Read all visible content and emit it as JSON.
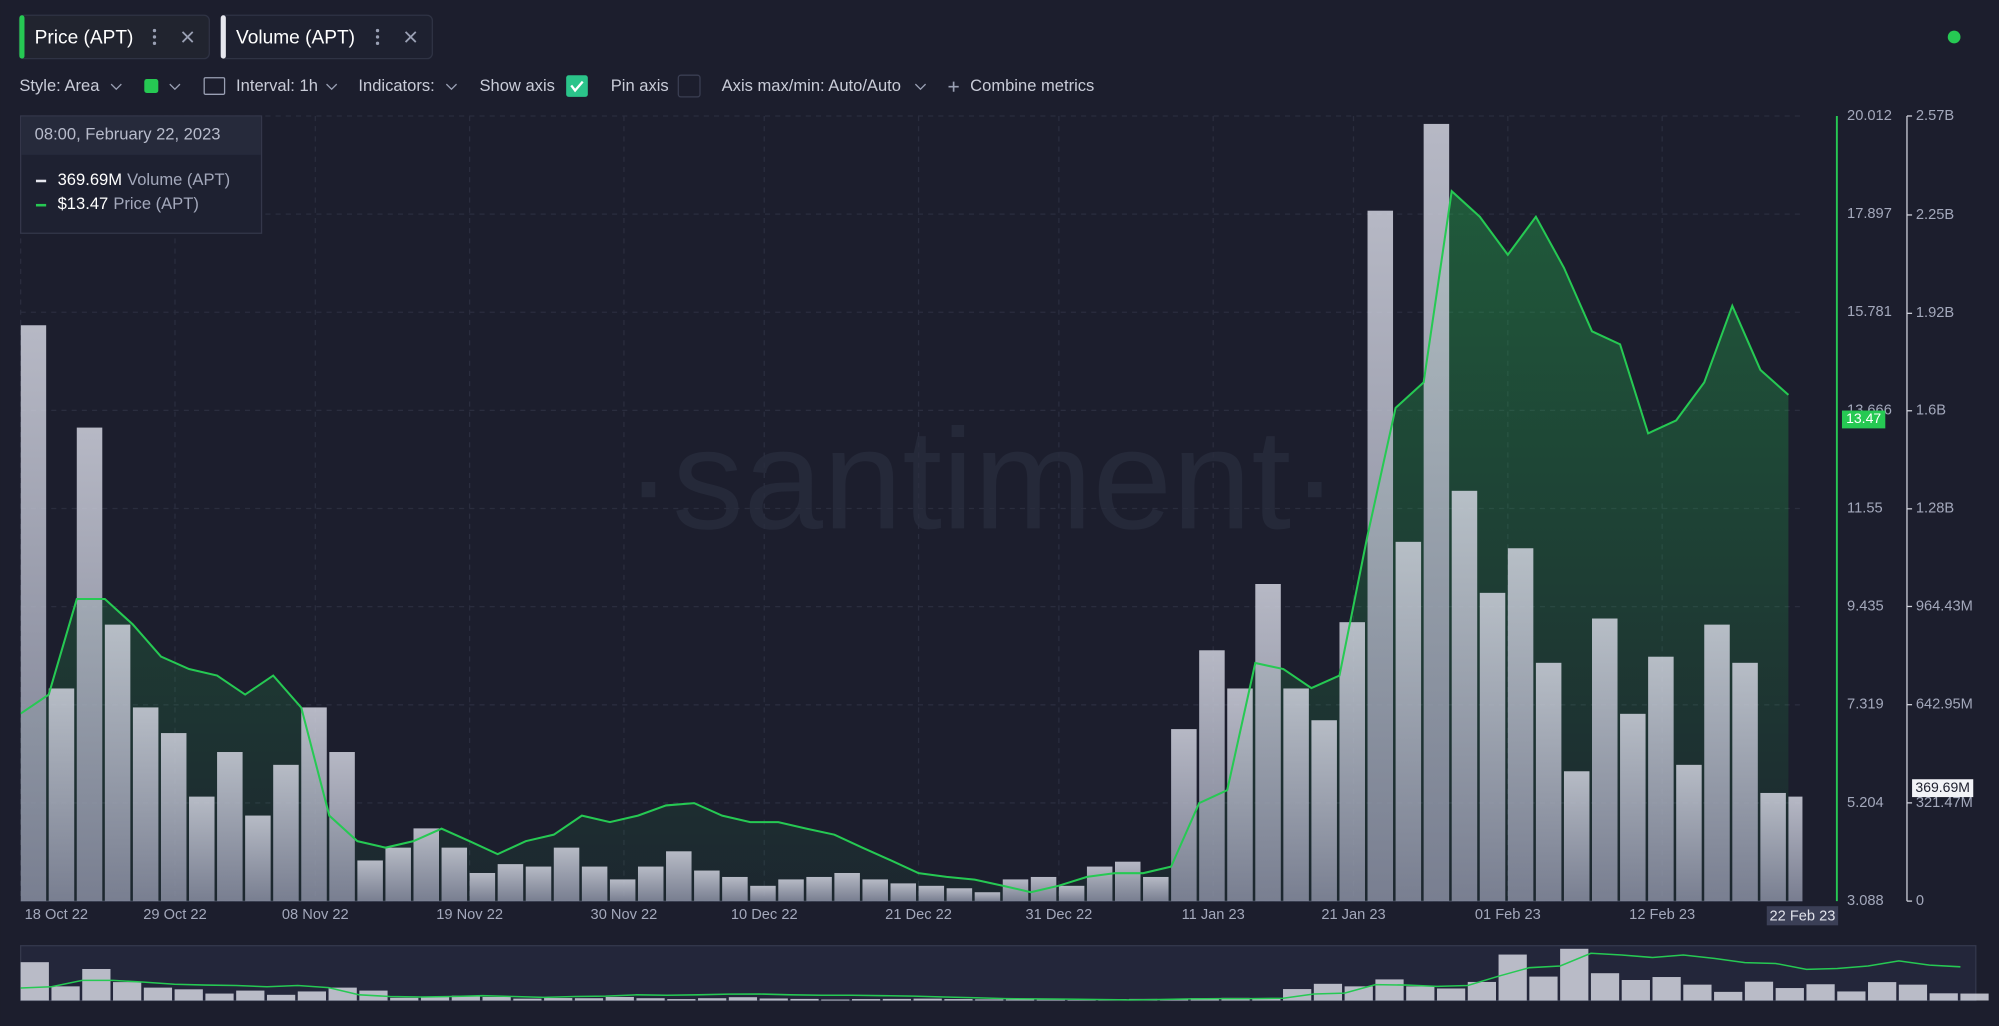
{
  "toolbar": {
    "style": "Style: Area",
    "interval": "Interval: 1h",
    "indicators": "Indicators:",
    "show_axis": "Show axis",
    "pin_axis": "Pin axis",
    "axis_minmax": "Axis max/min: Auto/Auto",
    "combine": "Combine metrics"
  },
  "watermark": "·santiment·",
  "chart_data": {
    "type": "combo",
    "x": [
      "2022-10-18",
      "2022-10-20",
      "2022-10-22",
      "2022-10-24",
      "2022-10-26",
      "2022-10-28",
      "2022-10-30",
      "2022-11-01",
      "2022-11-03",
      "2022-11-05",
      "2022-11-07",
      "2022-11-09",
      "2022-11-11",
      "2022-11-13",
      "2022-11-15",
      "2022-11-17",
      "2022-11-19",
      "2022-11-21",
      "2022-11-23",
      "2022-11-25",
      "2022-11-27",
      "2022-11-29",
      "2022-12-01",
      "2022-12-03",
      "2022-12-05",
      "2022-12-07",
      "2022-12-09",
      "2022-12-11",
      "2022-12-13",
      "2022-12-15",
      "2022-12-17",
      "2022-12-19",
      "2022-12-21",
      "2022-12-23",
      "2022-12-25",
      "2022-12-27",
      "2022-12-29",
      "2022-12-31",
      "2023-01-02",
      "2023-01-04",
      "2023-01-06",
      "2023-01-08",
      "2023-01-10",
      "2023-01-12",
      "2023-01-14",
      "2023-01-16",
      "2023-01-18",
      "2023-01-20",
      "2023-01-22",
      "2023-01-24",
      "2023-01-26",
      "2023-01-28",
      "2023-01-30",
      "2023-02-01",
      "2023-02-03",
      "2023-02-05",
      "2023-02-07",
      "2023-02-09",
      "2023-02-11",
      "2023-02-13",
      "2023-02-15",
      "2023-02-17",
      "2023-02-19",
      "2023-02-21"
    ],
    "series": [
      {
        "name": "Price (APT)",
        "type": "area",
        "color": "#26c953",
        "values": [
          7.13,
          7.54,
          9.6,
          9.6,
          9.05,
          8.36,
          8.09,
          7.95,
          7.54,
          7.95,
          7.26,
          4.93,
          4.38,
          4.24,
          4.38,
          4.65,
          4.38,
          4.1,
          4.38,
          4.52,
          4.93,
          4.79,
          4.93,
          5.15,
          5.2,
          4.93,
          4.79,
          4.79,
          4.65,
          4.52,
          4.24,
          3.97,
          3.69,
          3.61,
          3.55,
          3.42,
          3.28,
          3.42,
          3.61,
          3.69,
          3.69,
          3.83,
          5.2,
          5.48,
          8.22,
          8.09,
          7.68,
          7.95,
          10.97,
          13.72,
          14.27,
          18.39,
          17.84,
          17.02,
          17.84,
          16.74,
          15.37,
          15.09,
          13.17,
          13.45,
          14.27,
          15.92,
          14.54,
          14.0
        ]
      },
      {
        "name": "Volume (APT)",
        "type": "bar",
        "axis": "y2",
        "color": "#c9cbd8",
        "values": [
          1885000000,
          696000000,
          1550000000,
          905000000,
          634000000,
          550000000,
          342000000,
          488000000,
          280000000,
          446000000,
          634000000,
          488000000,
          133000000,
          175000000,
          238000000,
          175000000,
          92000000,
          121000000,
          113000000,
          175000000,
          113000000,
          71000000,
          113000000,
          163000000,
          100000000,
          79000000,
          50000000,
          71000000,
          79000000,
          92000000,
          71000000,
          58000000,
          50000000,
          42000000,
          29000000,
          71000000,
          79000000,
          50000000,
          113000000,
          129000000,
          79000000,
          563000000,
          821000000,
          696000000,
          1038000000,
          696000000,
          592000000,
          913000000,
          2260000000,
          1176000000,
          2544000000,
          1343000000,
          1009000000,
          1155000000,
          780000000,
          425000000,
          925000000,
          613000000,
          800000000,
          446000000,
          905000000,
          780000000,
          354000000,
          342000000
        ]
      }
    ],
    "xlim": [
      "2022-10-18",
      "2023-02-22"
    ],
    "xticks": [
      {
        "value": "2022-10-18",
        "label": "18 Oct 22"
      },
      {
        "value": "2022-10-29",
        "label": "29 Oct 22"
      },
      {
        "value": "2022-11-08",
        "label": "08 Nov 22"
      },
      {
        "value": "2022-11-19",
        "label": "19 Nov 22"
      },
      {
        "value": "2022-11-30",
        "label": "30 Nov 22"
      },
      {
        "value": "2022-12-10",
        "label": "10 Dec 22"
      },
      {
        "value": "2022-12-21",
        "label": "21 Dec 22"
      },
      {
        "value": "2022-12-31",
        "label": "31 Dec 22"
      },
      {
        "value": "2023-01-11",
        "label": "11 Jan 23"
      },
      {
        "value": "2023-01-21",
        "label": "21 Jan 23"
      },
      {
        "value": "2023-02-01",
        "label": "01 Feb 23"
      },
      {
        "value": "2023-02-12",
        "label": "12 Feb 23"
      }
    ],
    "ylim": [
      3.088,
      20.012
    ],
    "yticks": [
      3.088,
      5.204,
      7.319,
      9.435,
      11.55,
      13.666,
      15.781,
      17.897,
      20.012
    ],
    "y2lim": [
      0,
      2570000000
    ],
    "y2ticks": [
      0,
      {
        "value": 321470000,
        "label": "321.47M"
      },
      {
        "value": 642950000,
        "label": "642.95M"
      },
      {
        "value": 964430000,
        "label": "964.43M"
      },
      {
        "value": 1284000000,
        "label": "1.28B"
      },
      {
        "value": 1605000000,
        "label": "1.6B"
      },
      {
        "value": 1924000000,
        "label": "1.92B"
      },
      {
        "value": 2246000000,
        "label": "2.25B"
      },
      {
        "value": 2570000000,
        "label": "2.57B"
      }
    ],
    "grid": true,
    "cursor": {
      "x": "2023-02-22",
      "x_label": "22 Feb 23",
      "time_label": "08:00, February 22, 2023",
      "price": 13.47,
      "price_label": "$13.47",
      "volume": 369690000,
      "volume_label": "369.69M"
    }
  }
}
